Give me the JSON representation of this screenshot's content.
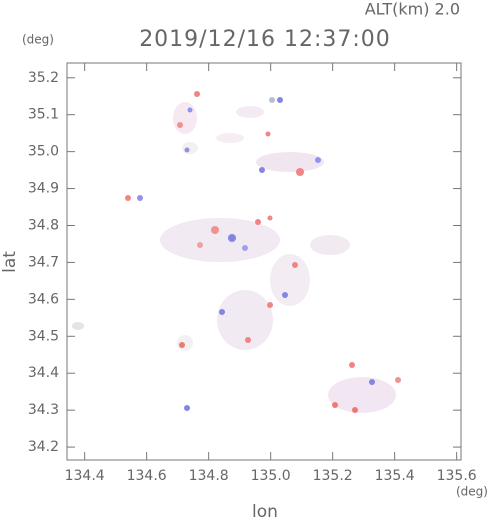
{
  "chart_data": {
    "type": "map",
    "title": "2019/12/16 12:37:00",
    "subtitle": "ALT(km) 2.0",
    "xlabel": "lon",
    "ylabel": "lat",
    "xunit": "(deg)",
    "yunit": "(deg)",
    "xlim": [
      134.343,
      135.614
    ],
    "ylim": [
      34.165,
      35.24
    ],
    "xticks": [
      134.4,
      134.6,
      134.8,
      {
        "value": 135,
        "label": "135.0"
      },
      135.2,
      135.4,
      135.6
    ],
    "yticks": [
      34.2,
      34.3,
      34.4,
      34.5,
      34.6,
      34.7,
      34.8,
      34.9,
      {
        "value": 35,
        "label": "35.0"
      },
      35.1,
      35.2
    ]
  }
}
